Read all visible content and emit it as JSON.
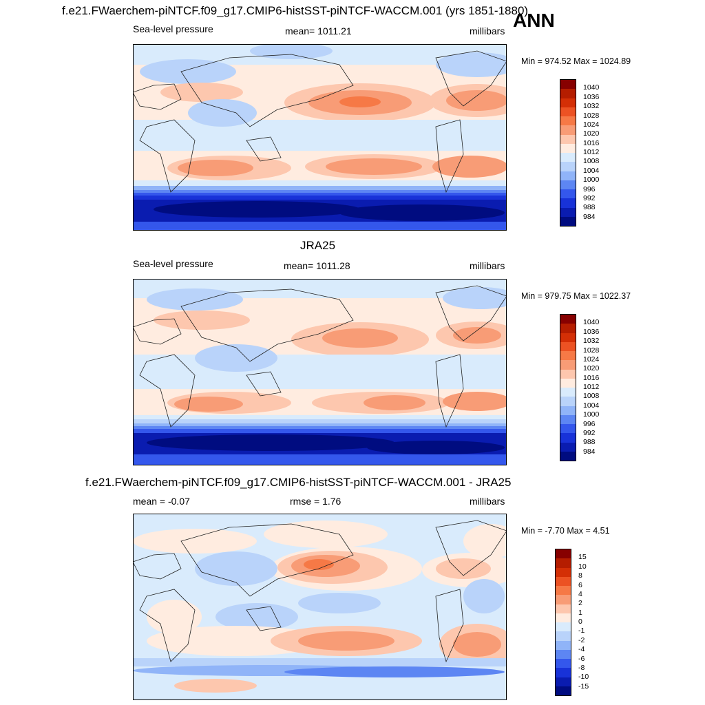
{
  "figure": {
    "main_title": "f.e21.FWaerchem-piNTCF.f09_g17.CMIP6-histSST-piNTCF-WACCM.001 (yrs 1851-1880)",
    "season": "ANN"
  },
  "panels": [
    {
      "id": "model",
      "title": "",
      "left_label": "Sea-level pressure",
      "center_label": "mean= 1011.21",
      "right_label": "millibars",
      "minmax": "Min = 974.52 Max = 1024.89",
      "colorbar_labels": [
        "1040",
        "1036",
        "1032",
        "1028",
        "1024",
        "1020",
        "1016",
        "1012",
        "1008",
        "1004",
        "1000",
        "996",
        "992",
        "988",
        "984"
      ]
    },
    {
      "id": "obs",
      "title": "JRA25",
      "left_label": "Sea-level pressure",
      "center_label": "mean= 1011.28",
      "right_label": "millibars",
      "minmax": "Min = 979.75 Max = 1022.37",
      "colorbar_labels": [
        "1040",
        "1036",
        "1032",
        "1028",
        "1024",
        "1020",
        "1016",
        "1012",
        "1008",
        "1004",
        "1000",
        "996",
        "992",
        "988",
        "984"
      ]
    },
    {
      "id": "diff",
      "title": "f.e21.FWaerchem-piNTCF.f09_g17.CMIP6-histSST-piNTCF-WACCM.001 - JRA25",
      "left_label": "mean =  -0.07",
      "center_label": "rmse =   1.76",
      "right_label": "millibars",
      "minmax": "Min =  -7.70 Max =   4.51",
      "colorbar_labels": [
        "15",
        "10",
        "8",
        "6",
        "4",
        "2",
        "1",
        "0",
        "-1",
        "-2",
        "-4",
        "-6",
        "-8",
        "-10",
        "-15"
      ]
    }
  ],
  "colors": {
    "abs_scale": [
      "#870000",
      "#b51d00",
      "#d42f06",
      "#ec5223",
      "#f67946",
      "#f89c76",
      "#fdc7ae",
      "#ffece0",
      "#d9ebfc",
      "#b9d3fa",
      "#90b4f8",
      "#5d86f3",
      "#3457ec",
      "#1832d8",
      "#0a1cb0",
      "#000c80"
    ],
    "diff_scale": [
      "#870000",
      "#b51d00",
      "#d42f06",
      "#ec5223",
      "#f67946",
      "#f89c76",
      "#fdc7ae",
      "#ffece0",
      "#d9ebfc",
      "#b9d3fa",
      "#90b4f8",
      "#5d86f3",
      "#3457ec",
      "#1832d8",
      "#0a1cb0",
      "#000c80"
    ]
  }
}
